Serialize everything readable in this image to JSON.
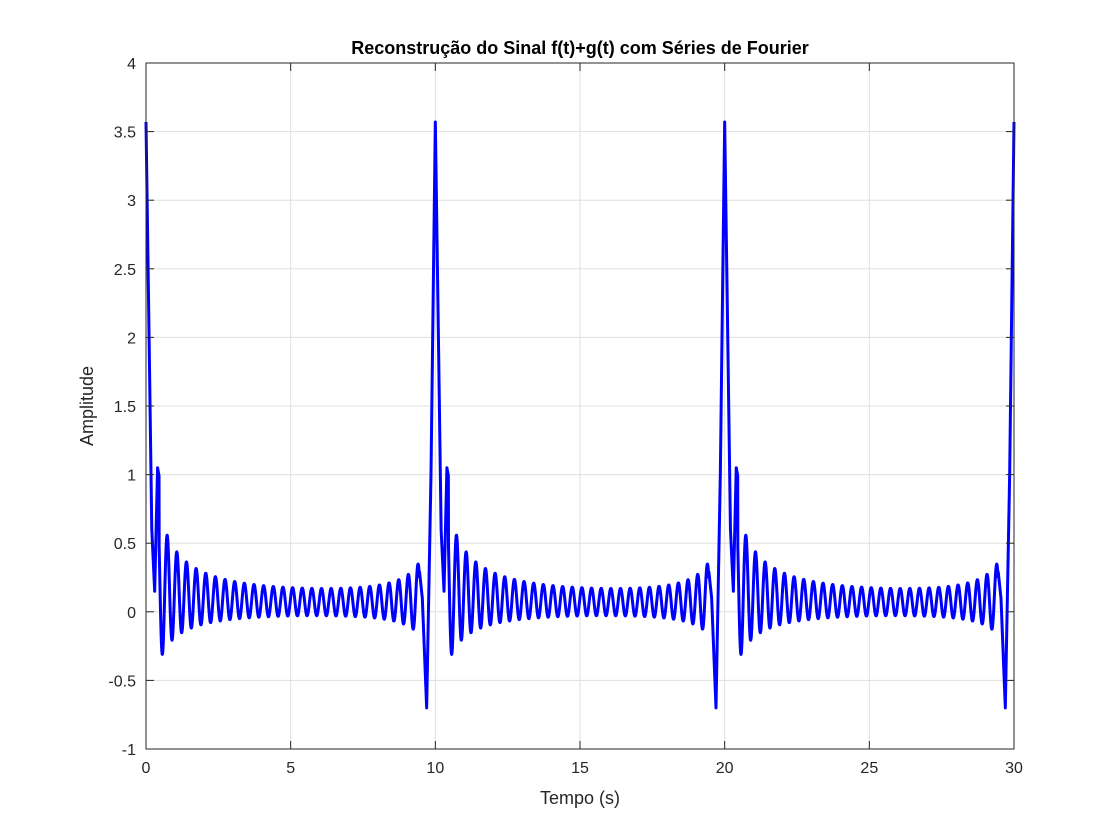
{
  "window": {
    "title": "Reconstrução do Sinal f(t)+g(t) com Séries de Fourier"
  },
  "colors": {
    "line": "#0000ff",
    "grid": "#dfdfdf",
    "axes": "#262626"
  },
  "chart_data": {
    "type": "line",
    "title": "Reconstrução do Sinal f(t)+g(t) com Séries de Fourier",
    "xlabel": "Tempo (s)",
    "ylabel": "Amplitude",
    "xlim": [
      0,
      30
    ],
    "ylim": [
      -1,
      4
    ],
    "xticks": [
      0,
      5,
      10,
      15,
      20,
      25,
      30
    ],
    "xtick_labels": [
      "0",
      "5",
      "10",
      "15",
      "20",
      "25",
      "30"
    ],
    "yticks": [
      -1,
      -0.5,
      0,
      0.5,
      1,
      1.5,
      2,
      2.5,
      3,
      3.5,
      4
    ],
    "ytick_labels": [
      "-1",
      "-0.5",
      "0",
      "0.5",
      "1",
      "1.5",
      "2",
      "2.5",
      "3",
      "3.5",
      "4"
    ],
    "grid": true,
    "series": [
      {
        "color": "#0000ff",
        "description": "periodic signal, period 10 s; spikes of 3.57 at t=0,10,20,30; minima of -0.70 just before each spike (t≈9.7,19.7,29.7); decaying oscillations (~3 Hz) between spikes",
        "x": [
          0,
          0.1,
          0.2,
          0.3,
          0.4,
          0.7,
          1.0,
          1.4,
          2.0,
          3.0,
          5.0,
          7.0,
          8.0,
          8.7,
          9.1,
          9.4,
          9.55,
          9.7,
          9.85,
          10.0,
          10.1,
          10.2,
          10.3,
          10.4,
          10.7,
          11.0,
          11.4,
          12.0,
          13.0,
          15.0,
          17.0,
          18.0,
          18.7,
          19.1,
          19.4,
          19.55,
          19.7,
          19.85,
          20.0,
          20.1,
          20.2,
          20.3,
          20.4,
          20.7,
          21.0,
          21.4,
          22.0,
          23.0,
          25.0,
          27.0,
          28.0,
          28.7,
          29.1,
          29.4,
          29.55,
          29.7,
          29.85,
          30.0
        ],
        "y": [
          3.57,
          2.1,
          0.6,
          0.15,
          1.05,
          0.7,
          0.5,
          0.36,
          0.22,
          0.1,
          0.05,
          0.06,
          0.12,
          0.2,
          0.3,
          0.4,
          0.1,
          -0.7,
          1.0,
          3.57,
          2.1,
          0.6,
          0.15,
          1.05,
          0.7,
          0.5,
          0.36,
          0.22,
          0.1,
          0.05,
          0.06,
          0.12,
          0.2,
          0.3,
          0.4,
          0.1,
          -0.7,
          1.0,
          3.57,
          2.1,
          0.6,
          0.15,
          1.05,
          0.7,
          0.5,
          0.36,
          0.22,
          0.1,
          0.05,
          0.06,
          0.12,
          0.2,
          0.3,
          0.4,
          0.1,
          -0.7,
          1.0,
          3.57
        ]
      }
    ]
  }
}
